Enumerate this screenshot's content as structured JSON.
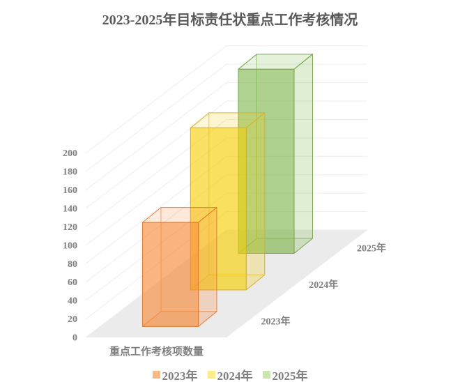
{
  "title": "2023-2025年目标责任状重点工作考核情况",
  "chart_data": {
    "type": "bar",
    "projection": "3d-oblique",
    "title": "2023-2025年目标责任状重点工作考核情况",
    "categories": [
      "2023年",
      "2024年",
      "2025年"
    ],
    "series": [
      {
        "name": "2023年",
        "value": 113,
        "fill": "#F78937",
        "stroke": "#E5772A",
        "legend_swatch": "#F9BA87"
      },
      {
        "name": "2024年",
        "value": 176,
        "fill": "#F7CE05",
        "stroke": "#D8AE25",
        "legend_swatch": "#FBEC8E"
      },
      {
        "name": "2025年",
        "value": 200,
        "fill": "#81B84E",
        "stroke": "#74A544",
        "legend_swatch": "#C9E6AB"
      }
    ],
    "xlabel": "重点工作考核项数量",
    "ylabel": "",
    "ylim": [
      0,
      200
    ],
    "ytick_step": 20,
    "yticks": [
      0,
      20,
      40,
      60,
      80,
      100,
      120,
      140,
      160,
      180,
      200
    ],
    "legend": [
      "2023年",
      "2024年",
      "2025年"
    ],
    "legend_position": "bottom",
    "grid": true,
    "colors": {
      "background": "#FFFFFF",
      "title_text": "#595959",
      "axis_text": "#7F7F7F",
      "gridline": "#EDEDED",
      "floor": "#EBEBEB"
    }
  }
}
